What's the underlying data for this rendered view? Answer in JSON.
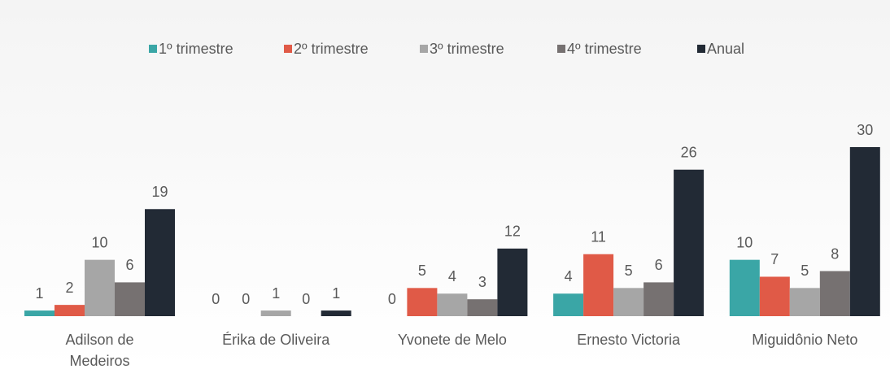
{
  "chart_data": {
    "type": "bar",
    "categories": [
      "Adilson de\nMedeiros",
      "Érika de Oliveira",
      "Yvonete de Melo",
      "Ernesto Victoria",
      "Miguidônio Neto"
    ],
    "series": [
      {
        "name": "1º trimestre",
        "color": "#3aa6a6",
        "values": [
          1,
          0,
          0,
          4,
          10
        ]
      },
      {
        "name": "2º trimestre",
        "color": "#e05a47",
        "values": [
          2,
          0,
          5,
          11,
          7
        ]
      },
      {
        "name": "3º trimestre",
        "color": "#a6a6a6",
        "values": [
          10,
          1,
          4,
          5,
          5
        ]
      },
      {
        "name": "4º trimestre",
        "color": "#767171",
        "values": [
          6,
          0,
          3,
          6,
          8
        ]
      },
      {
        "name": "Anual",
        "color": "#222a35",
        "values": [
          19,
          1,
          12,
          26,
          30
        ]
      }
    ],
    "legend": "top"
  }
}
